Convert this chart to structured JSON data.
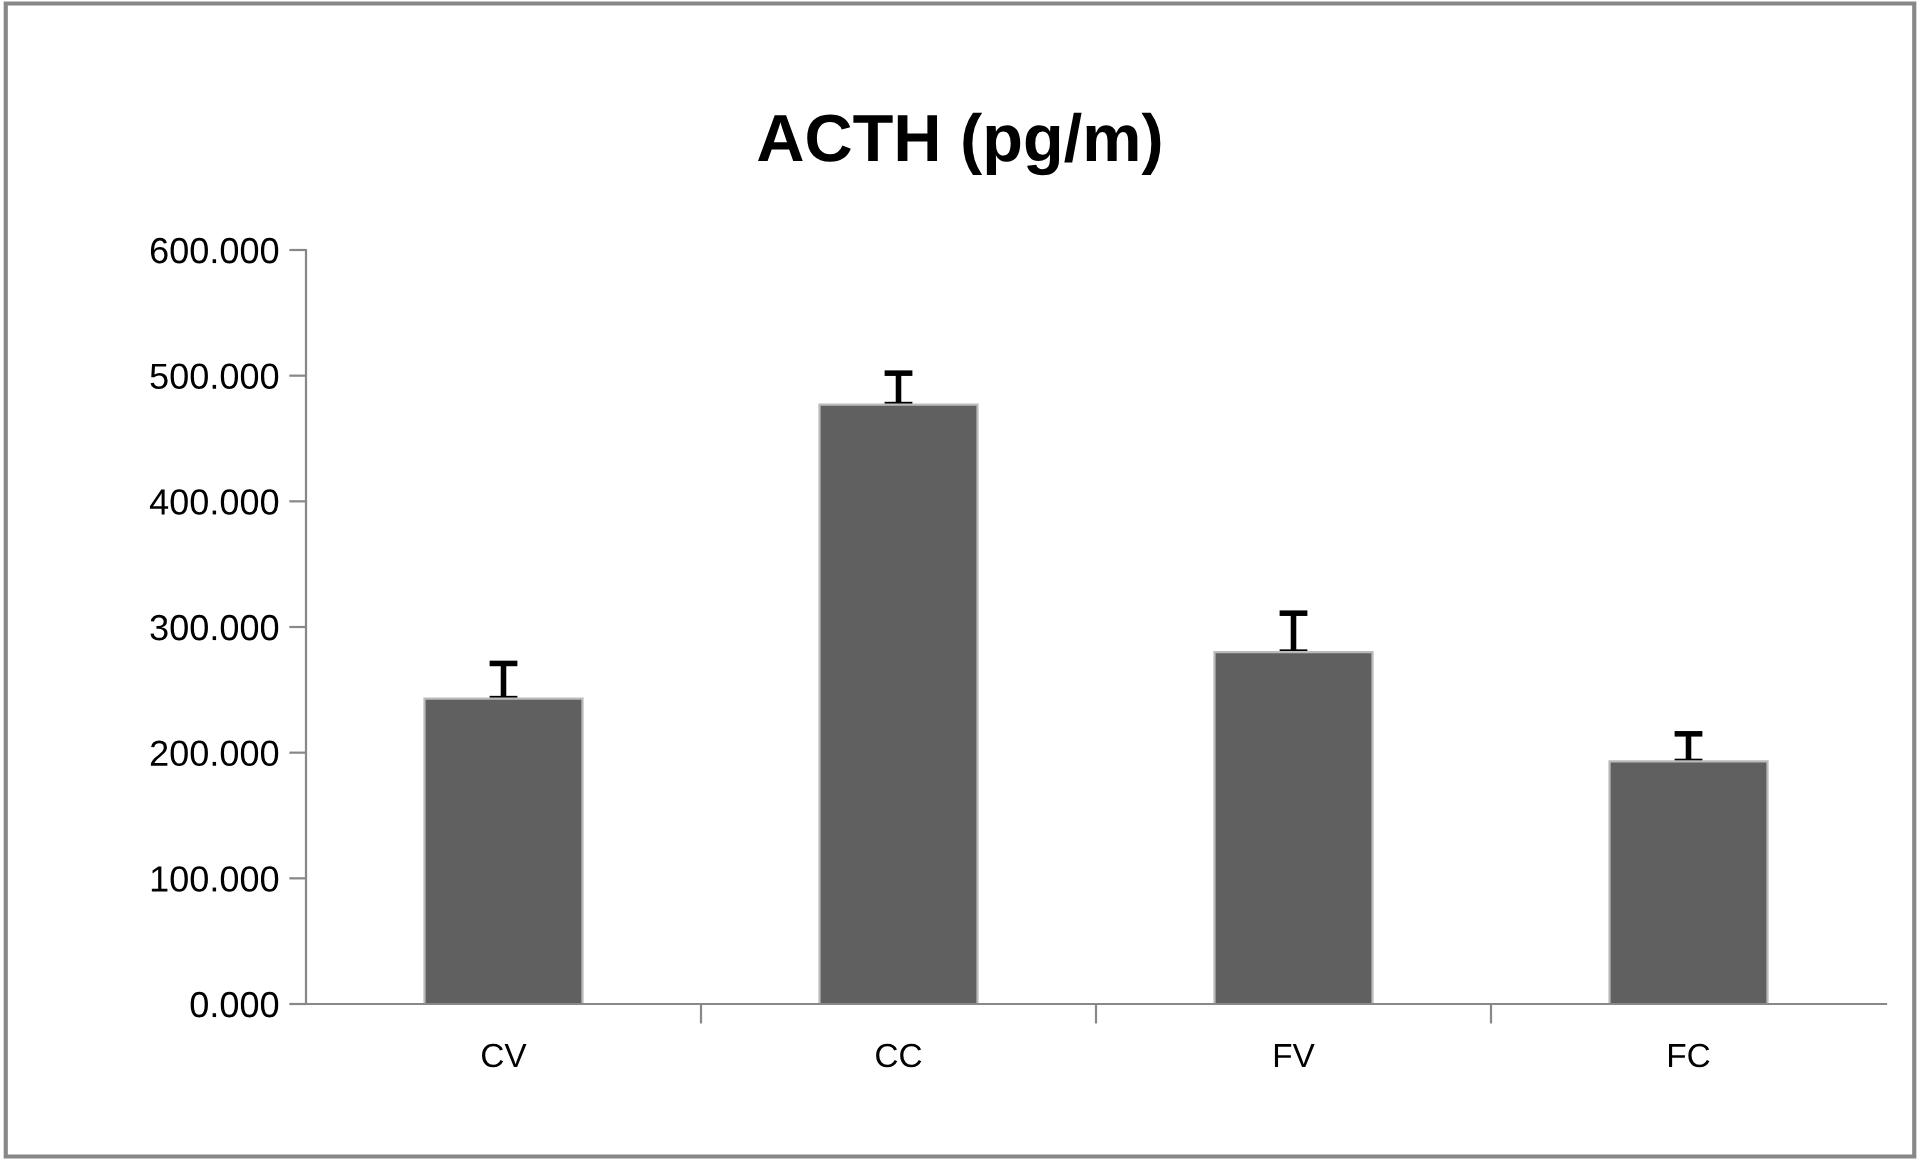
{
  "chart_data": {
    "type": "bar",
    "title": "ACTH (pg/m)",
    "categories": [
      "CV",
      "CC",
      "FV",
      "FC"
    ],
    "series": [
      {
        "color": "#606060",
        "values": [
          243,
          477,
          280,
          193
        ],
        "errors": [
          [
            243,
            271
          ],
          [
            477,
            502
          ],
          [
            280,
            311
          ],
          [
            193,
            215
          ]
        ]
      }
    ],
    "ylim": [
      0,
      600
    ],
    "yticks": [
      {
        "value": 0,
        "label": "0.000"
      },
      {
        "value": 100,
        "label": "100.000"
      },
      {
        "value": 200,
        "label": "200.000"
      },
      {
        "value": 300,
        "label": "300.000"
      },
      {
        "value": 400,
        "label": "400.000"
      },
      {
        "value": 500,
        "label": "500.000"
      },
      {
        "value": 600,
        "label": "600.000"
      }
    ],
    "grid": false,
    "legend": false
  }
}
